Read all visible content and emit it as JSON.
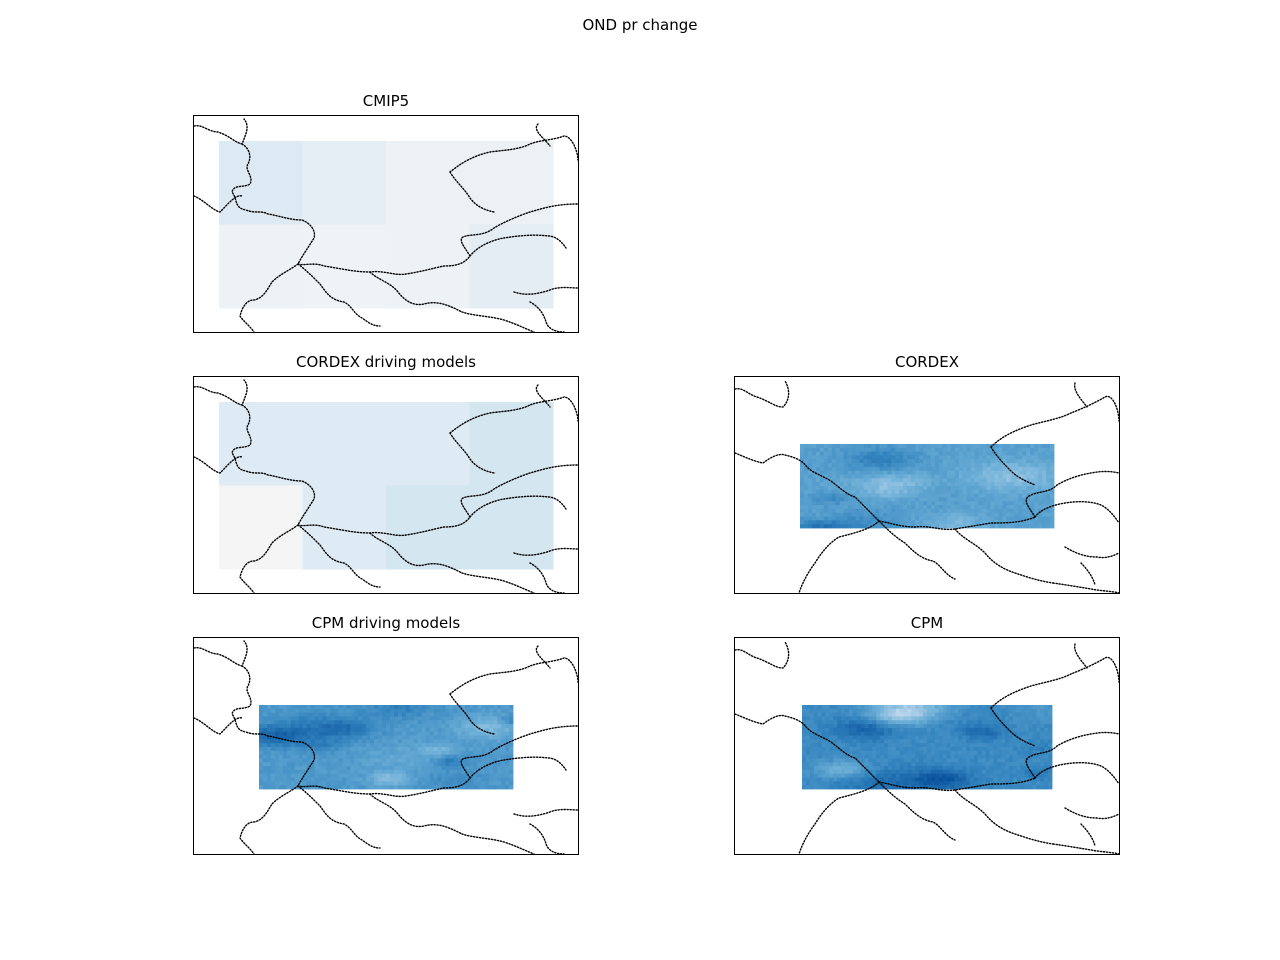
{
  "figure": {
    "title": "OND pr change"
  },
  "panels": [
    {
      "id": "cmip5",
      "title": "CMIP5",
      "kind": "coarse",
      "grid": [
        [
          "#deeaf3",
          "#e6eef5",
          "#ebf1f5",
          "#ebf1f5"
        ],
        [
          "#ecf2f6",
          "#f0f3f6",
          "#edf2f6",
          "#e4ecf4"
        ]
      ]
    },
    {
      "id": "cordex-driving",
      "title": "CORDEX driving models",
      "kind": "coarse",
      "grid": [
        [
          "#deebf4",
          "#deebf4",
          "#deebf4",
          "#d4e6f0"
        ],
        [
          "#f5f5f5",
          "#deebf4",
          "#d4e6f0",
          "#d4e6f0"
        ]
      ]
    },
    {
      "id": "cordex",
      "title": "CORDEX",
      "kind": "fine",
      "seed": 7,
      "intensity": 0.58
    },
    {
      "id": "cpm-driving",
      "title": "CPM driving models",
      "kind": "fine",
      "seed": 13,
      "intensity": 0.62
    },
    {
      "id": "cpm",
      "title": "CPM",
      "kind": "fine",
      "seed": 29,
      "intensity": 0.7
    }
  ]
}
